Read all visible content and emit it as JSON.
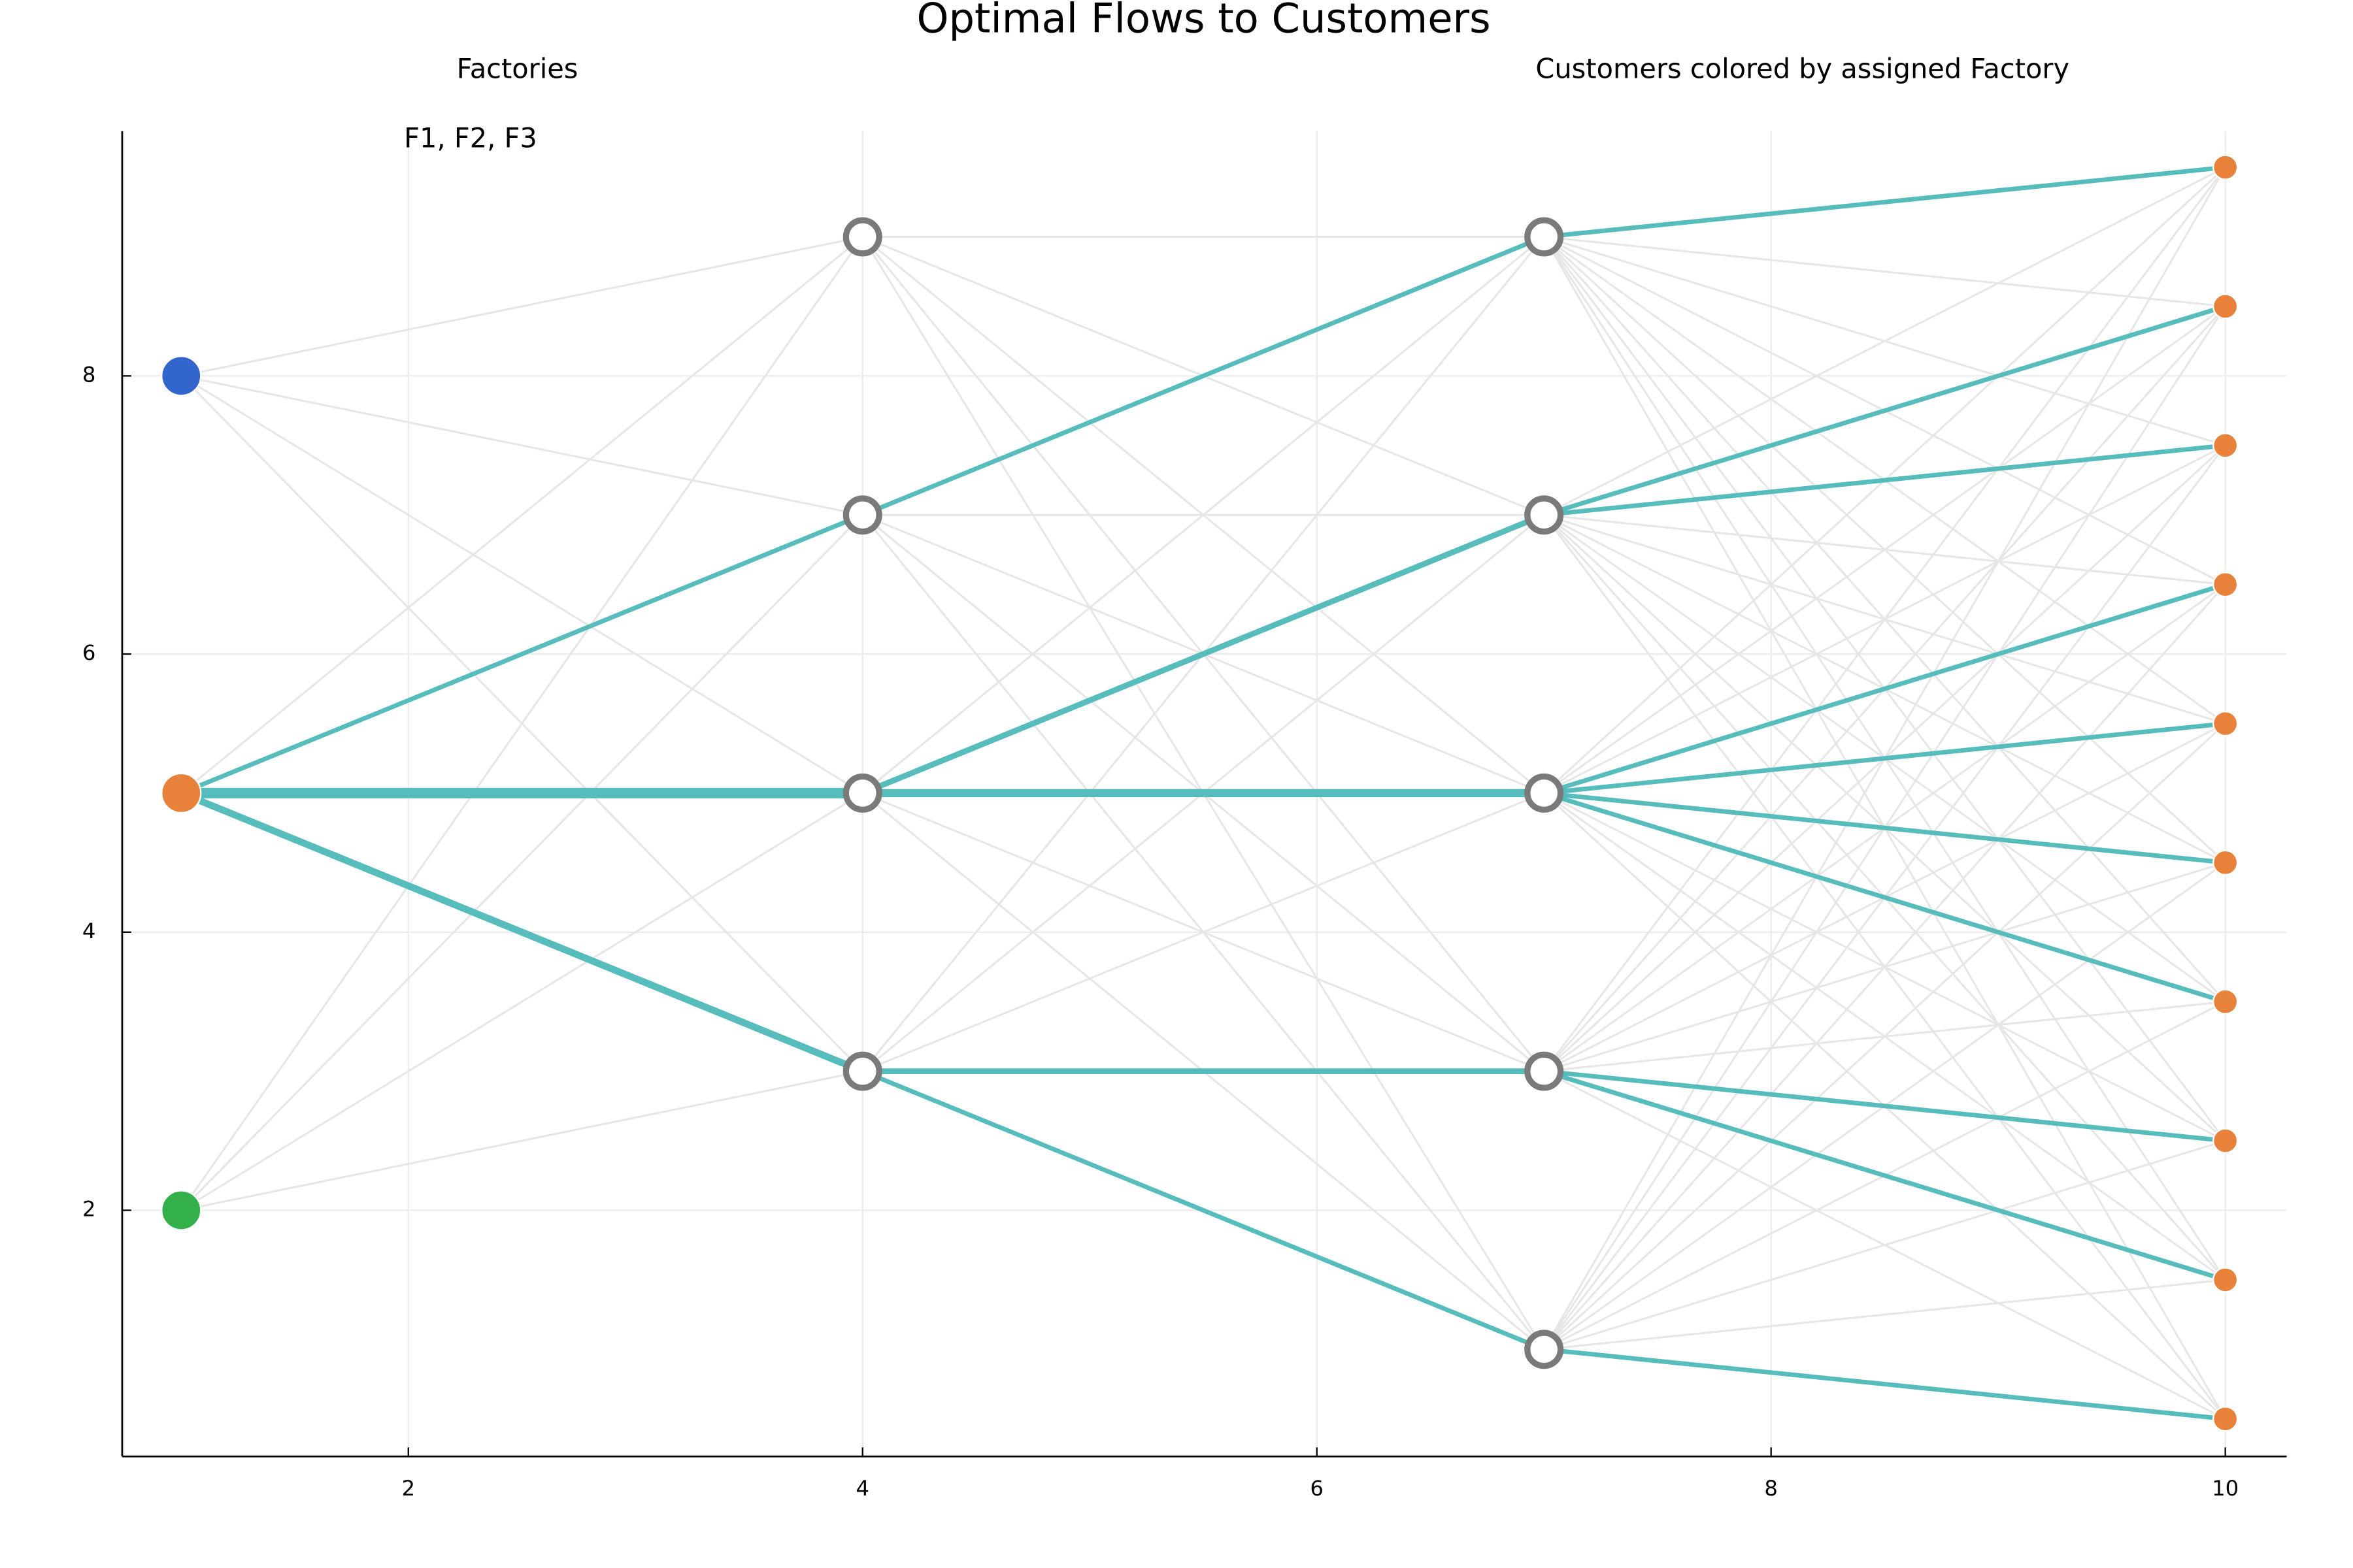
{
  "chart_data": {
    "type": "network",
    "title": "Optimal Flows to Customers",
    "annotations": [
      "Factories",
      "Customers colored by assigned Factory",
      "F1, F2, F3"
    ],
    "xlim": [
      0.74,
      10.27
    ],
    "ylim": [
      0.23,
      9.76
    ],
    "xticks": [
      2,
      4,
      6,
      8,
      10
    ],
    "yticks": [
      2,
      4,
      6,
      8
    ],
    "grid": true,
    "candidate_color": "#e6e6e6",
    "flow_color": "#56bcbc",
    "nodes": [
      {
        "x": 1,
        "y": 8,
        "color": "#3366cc",
        "hollow": false,
        "marker_size": 13
      },
      {
        "x": 1,
        "y": 5,
        "color": "#e8823a",
        "hollow": false,
        "marker_size": 13
      },
      {
        "x": 1,
        "y": 2,
        "color": "#33b04a",
        "hollow": false,
        "marker_size": 13
      },
      {
        "x": 4,
        "y": 9,
        "color": "#7a7a7a",
        "hollow": true,
        "marker_size": 11
      },
      {
        "x": 4,
        "y": 7,
        "color": "#7a7a7a",
        "hollow": true,
        "marker_size": 11
      },
      {
        "x": 4,
        "y": 5,
        "color": "#7a7a7a",
        "hollow": true,
        "marker_size": 11
      },
      {
        "x": 4,
        "y": 3,
        "color": "#7a7a7a",
        "hollow": true,
        "marker_size": 11
      },
      {
        "x": 7,
        "y": 9,
        "color": "#7a7a7a",
        "hollow": true,
        "marker_size": 11
      },
      {
        "x": 7,
        "y": 7,
        "color": "#7a7a7a",
        "hollow": true,
        "marker_size": 11
      },
      {
        "x": 7,
        "y": 5,
        "color": "#7a7a7a",
        "hollow": true,
        "marker_size": 11
      },
      {
        "x": 7,
        "y": 3,
        "color": "#7a7a7a",
        "hollow": true,
        "marker_size": 11
      },
      {
        "x": 7,
        "y": 1,
        "color": "#7a7a7a",
        "hollow": true,
        "marker_size": 11
      },
      {
        "x": 10,
        "y": 9.5,
        "color": "#e8823a",
        "hollow": false,
        "marker_size": 8
      },
      {
        "x": 10,
        "y": 8.5,
        "color": "#e8823a",
        "hollow": false,
        "marker_size": 8
      },
      {
        "x": 10,
        "y": 7.5,
        "color": "#e8823a",
        "hollow": false,
        "marker_size": 8
      },
      {
        "x": 10,
        "y": 6.5,
        "color": "#e8823a",
        "hollow": false,
        "marker_size": 8
      },
      {
        "x": 10,
        "y": 5.5,
        "color": "#e8823a",
        "hollow": false,
        "marker_size": 8
      },
      {
        "x": 10,
        "y": 4.5,
        "color": "#e8823a",
        "hollow": false,
        "marker_size": 8
      },
      {
        "x": 10,
        "y": 3.5,
        "color": "#e8823a",
        "hollow": false,
        "marker_size": 8
      },
      {
        "x": 10,
        "y": 2.5,
        "color": "#e8823a",
        "hollow": false,
        "marker_size": 8
      },
      {
        "x": 10,
        "y": 1.5,
        "color": "#e8823a",
        "hollow": false,
        "marker_size": 8
      },
      {
        "x": 10,
        "y": 0.5,
        "color": "#e8823a",
        "hollow": false,
        "marker_size": 8
      }
    ],
    "layers": [
      [
        0,
        1,
        2
      ],
      [
        3,
        4,
        5,
        6
      ],
      [
        7,
        8,
        9,
        10,
        11
      ],
      [
        12,
        13,
        14,
        15,
        16,
        17,
        18,
        19,
        20,
        21
      ]
    ],
    "flows": [
      {
        "from": 1,
        "to": 3,
        "flow": 0
      },
      {
        "from": 1,
        "to": 4,
        "flow": 1
      },
      {
        "from": 1,
        "to": 5,
        "flow": 6
      },
      {
        "from": 1,
        "to": 6,
        "flow": 3
      },
      {
        "from": 4,
        "to": 7,
        "flow": 1
      },
      {
        "from": 5,
        "to": 8,
        "flow": 2
      },
      {
        "from": 5,
        "to": 9,
        "flow": 4
      },
      {
        "from": 6,
        "to": 10,
        "flow": 2
      },
      {
        "from": 6,
        "to": 11,
        "flow": 1
      },
      {
        "from": 7,
        "to": 12,
        "flow": 1
      },
      {
        "from": 8,
        "to": 13,
        "flow": 1
      },
      {
        "from": 8,
        "to": 14,
        "flow": 1
      },
      {
        "from": 9,
        "to": 15,
        "flow": 1
      },
      {
        "from": 9,
        "to": 16,
        "flow": 1
      },
      {
        "from": 9,
        "to": 17,
        "flow": 1
      },
      {
        "from": 9,
        "to": 18,
        "flow": 1
      },
      {
        "from": 10,
        "to": 19,
        "flow": 1
      },
      {
        "from": 10,
        "to": 20,
        "flow": 1
      },
      {
        "from": 11,
        "to": 21,
        "flow": 1
      }
    ]
  }
}
